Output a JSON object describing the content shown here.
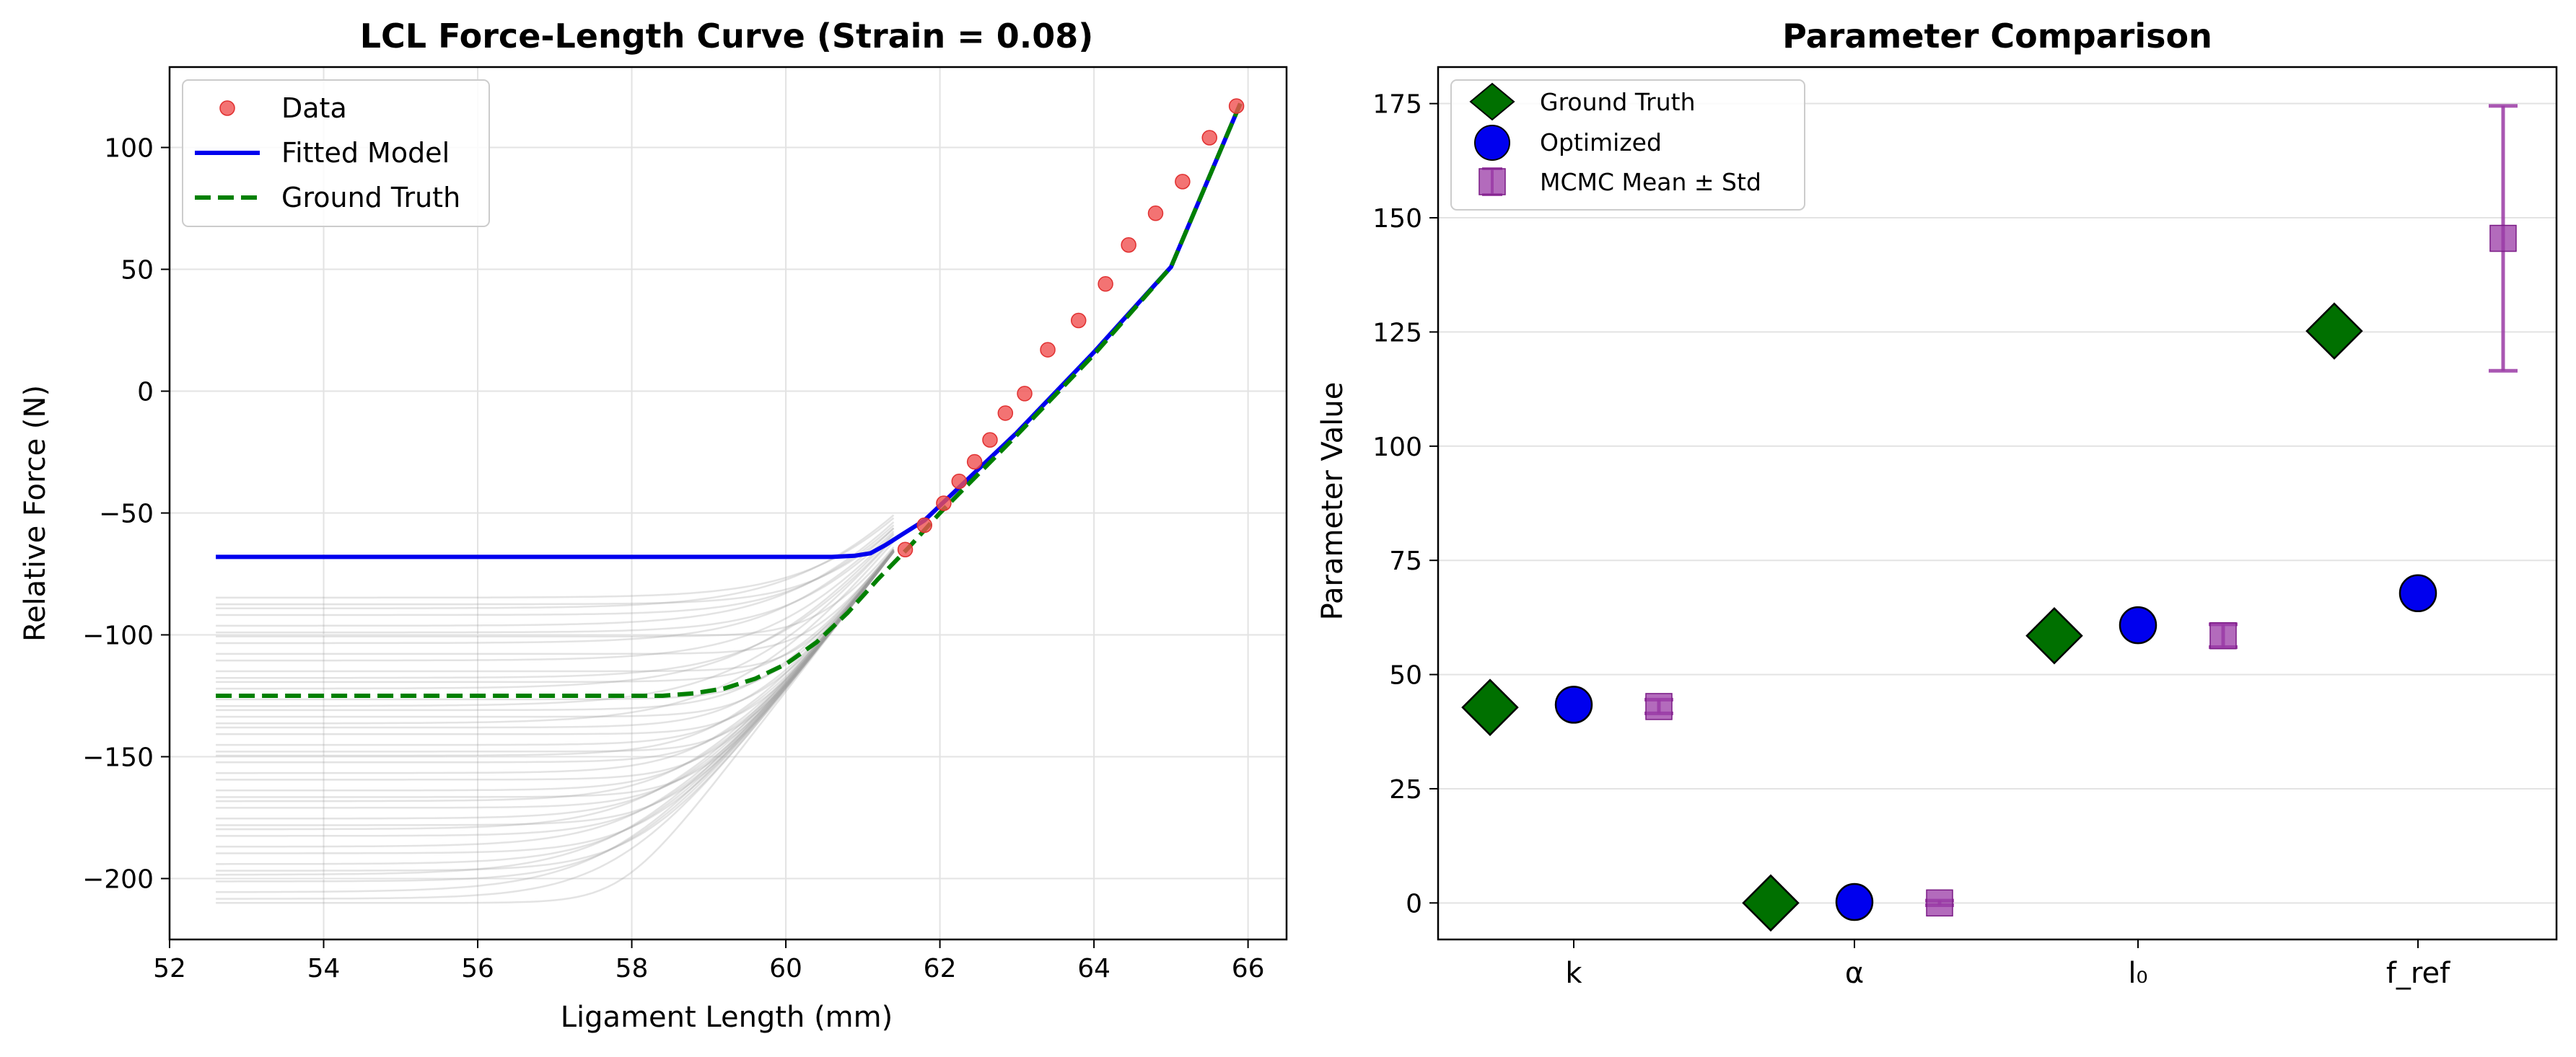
{
  "chart_data": [
    {
      "type": "line",
      "title": "LCL Force-Length Curve (Strain = 0.08)",
      "xlabel": "Ligament Length (mm)",
      "ylabel": "Relative Force (N)",
      "xlim": [
        52.0,
        66.5
      ],
      "ylim": [
        -225,
        133
      ],
      "xticks": [
        52,
        54,
        56,
        58,
        60,
        62,
        64,
        66
      ],
      "yticks": [
        -200,
        -150,
        -100,
        -50,
        0,
        50,
        100
      ],
      "grid": true,
      "legend_position": "top-left",
      "legend": [
        "Data",
        "Fitted Model",
        "Ground Truth"
      ],
      "series": [
        {
          "name": "Data",
          "kind": "scatter",
          "color": "#f05050",
          "x": [
            61.55,
            61.8,
            62.05,
            62.25,
            62.45,
            62.65,
            62.85,
            63.1,
            63.4,
            63.8,
            64.15,
            64.45,
            64.8,
            65.15,
            65.5,
            65.85
          ],
          "y": [
            -65,
            -55,
            -46,
            -37,
            -29,
            -20,
            -9,
            -1,
            17,
            29,
            44,
            60,
            73,
            86,
            104,
            117
          ]
        },
        {
          "name": "Fitted Model",
          "kind": "line",
          "color": "#0000ee",
          "x": [
            52.6,
            60.6,
            60.9,
            61.1,
            61.3,
            61.5,
            61.8,
            62.2,
            63.0,
            64.0,
            65.0,
            65.9
          ],
          "y": [
            -68,
            -68,
            -67.5,
            -66.5,
            -63,
            -59,
            -53,
            -41,
            -17,
            16,
            51,
            118
          ]
        },
        {
          "name": "Ground Truth",
          "kind": "dashed-line",
          "color": "#008000",
          "x": [
            52.6,
            58.4,
            58.8,
            59.2,
            59.6,
            60.0,
            60.4,
            60.8,
            61.2,
            61.6,
            62.0,
            63.0,
            64.0,
            65.0,
            65.9
          ],
          "y": [
            -125,
            -125,
            -124,
            -122,
            -118,
            -112,
            -103,
            -91,
            -77,
            -64,
            -50,
            -18,
            15,
            51,
            118
          ]
        }
      ],
      "posterior_samples": {
        "color": "#999999",
        "count": 44,
        "plateau_min": -210,
        "plateau_max": -82,
        "converge_x": 61.4,
        "converge_y": -66
      }
    },
    {
      "type": "scatter",
      "title": "Parameter Comparison",
      "xlabel": "",
      "ylabel": "Parameter Value",
      "ylim": [
        -8,
        183
      ],
      "yticks": [
        0,
        25,
        50,
        75,
        100,
        125,
        150,
        175
      ],
      "categories": [
        "k",
        "α",
        "l₀",
        "f_ref"
      ],
      "grid": true,
      "legend_position": "top-left",
      "legend": [
        "Ground Truth",
        "Optimized",
        "MCMC Mean ± Std"
      ],
      "series": [
        {
          "name": "Ground Truth",
          "marker": "diamond",
          "color": "#007000",
          "values": [
            42.8,
            0.0,
            58.5,
            125.2
          ]
        },
        {
          "name": "Optimized",
          "marker": "circle",
          "color": "#0000ee",
          "values": [
            43.4,
            0.2,
            60.8,
            67.8
          ]
        },
        {
          "name": "MCMC Mean ± Std",
          "marker": "square",
          "color": "#9a3aa5",
          "values": [
            43.0,
            0.0,
            58.5,
            145.5
          ],
          "err": [
            1.5,
            0.5,
            2.5,
            29.0
          ]
        }
      ]
    }
  ]
}
